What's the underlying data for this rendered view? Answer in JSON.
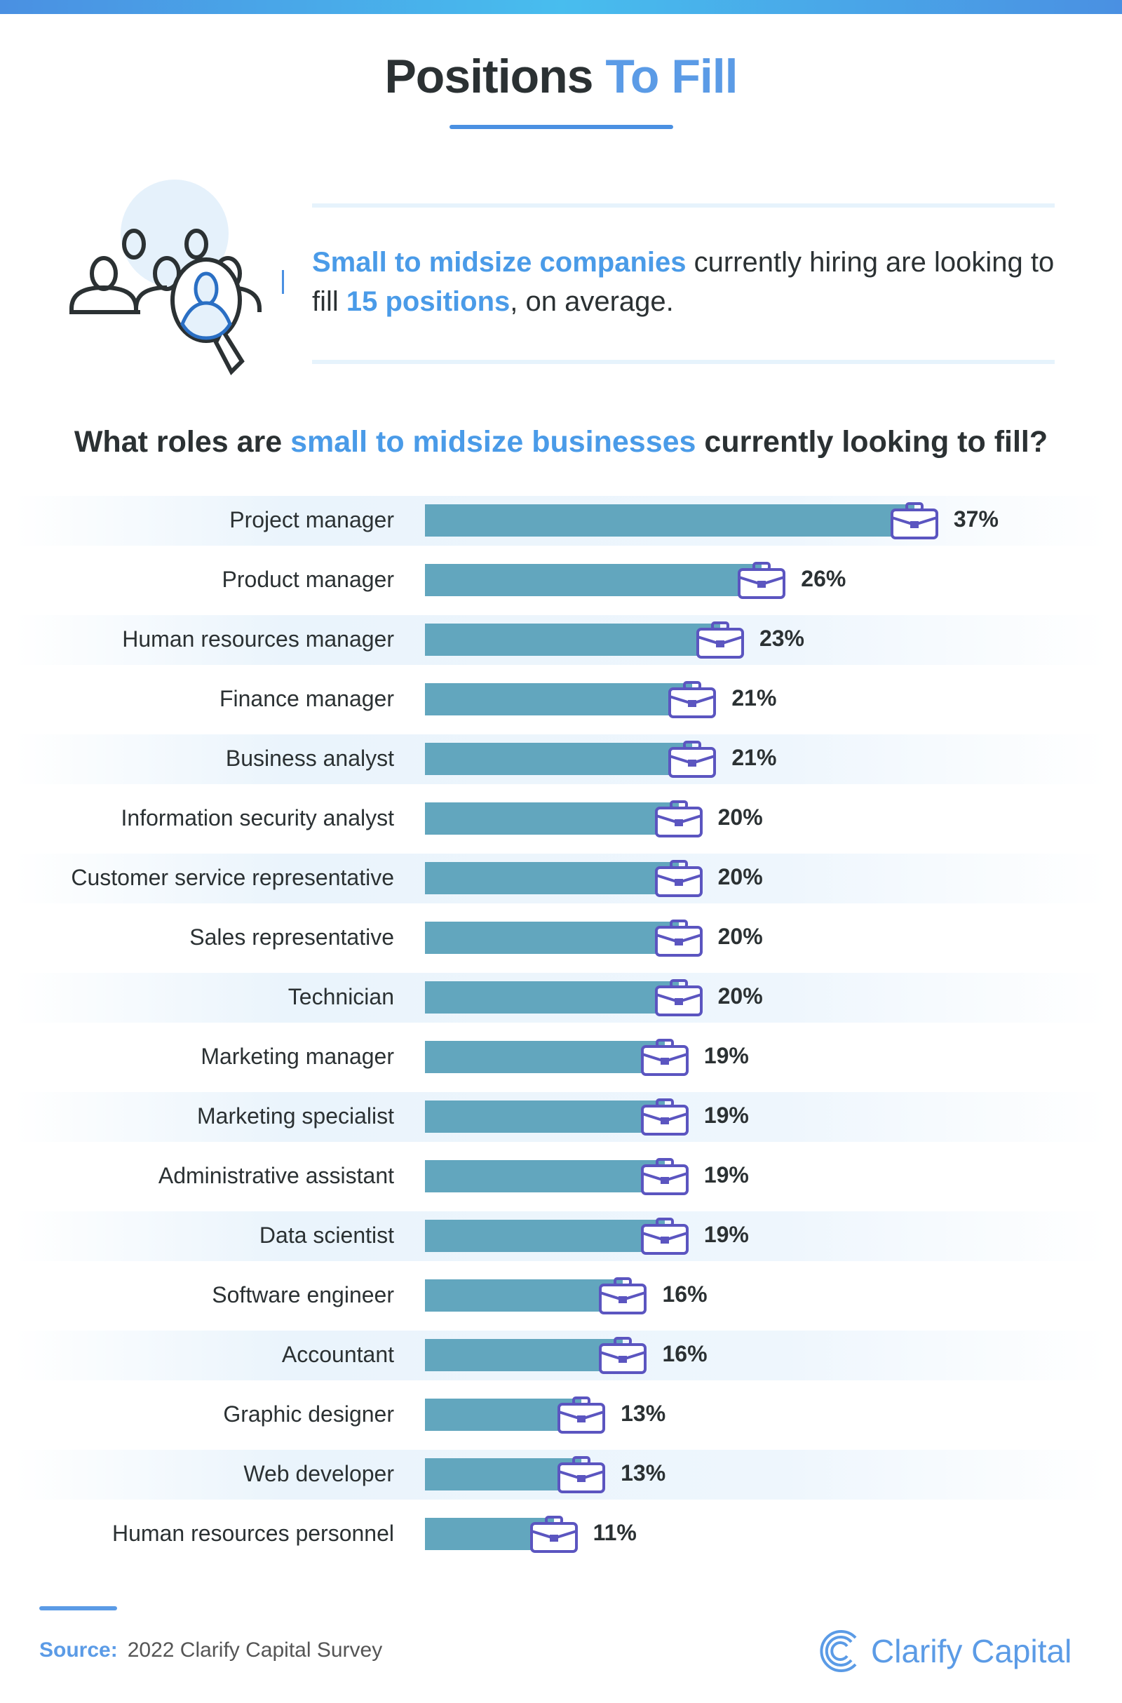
{
  "title": {
    "part1": "Positions",
    "part2": "To Fill"
  },
  "intro": {
    "highlight1": "Small to midsize companies",
    "text1": " currently hiring are looking to fill ",
    "highlight2": "15 positions",
    "text2": ", on average."
  },
  "question": {
    "part1": "What roles are ",
    "highlight": "small to midsize businesses",
    "part2": " currently looking to fill?"
  },
  "colors": {
    "bar": "#62a6be",
    "briefcase": "#5b55c0",
    "accent": "#4a9be8",
    "text": "#2b3133"
  },
  "chart_data": {
    "type": "bar",
    "orientation": "horizontal",
    "unit": "%",
    "categories": [
      "Project manager",
      "Product manager",
      "Human resources manager",
      "Finance manager",
      "Business analyst",
      "Information security analyst",
      "Customer service representative",
      "Sales representative",
      "Technician",
      "Marketing manager",
      "Marketing specialist",
      "Administrative assistant",
      "Data scientist",
      "Software engineer",
      "Accountant",
      "Graphic designer",
      "Web developer",
      "Human resources personnel"
    ],
    "values": [
      37,
      26,
      23,
      21,
      21,
      20,
      20,
      20,
      20,
      19,
      19,
      19,
      19,
      16,
      16,
      13,
      13,
      11
    ],
    "labels": [
      "37%",
      "26%",
      "23%",
      "21%",
      "21%",
      "20%",
      "20%",
      "20%",
      "20%",
      "19%",
      "19%",
      "19%",
      "19%",
      "16%",
      "16%",
      "13%",
      "13%",
      "11%"
    ],
    "marker_icon": "briefcase-icon",
    "grid": false
  },
  "footer": {
    "source_label": "Source:",
    "source_text": "2022 Clarify Capital Survey",
    "brand": "Clarify Capital"
  }
}
